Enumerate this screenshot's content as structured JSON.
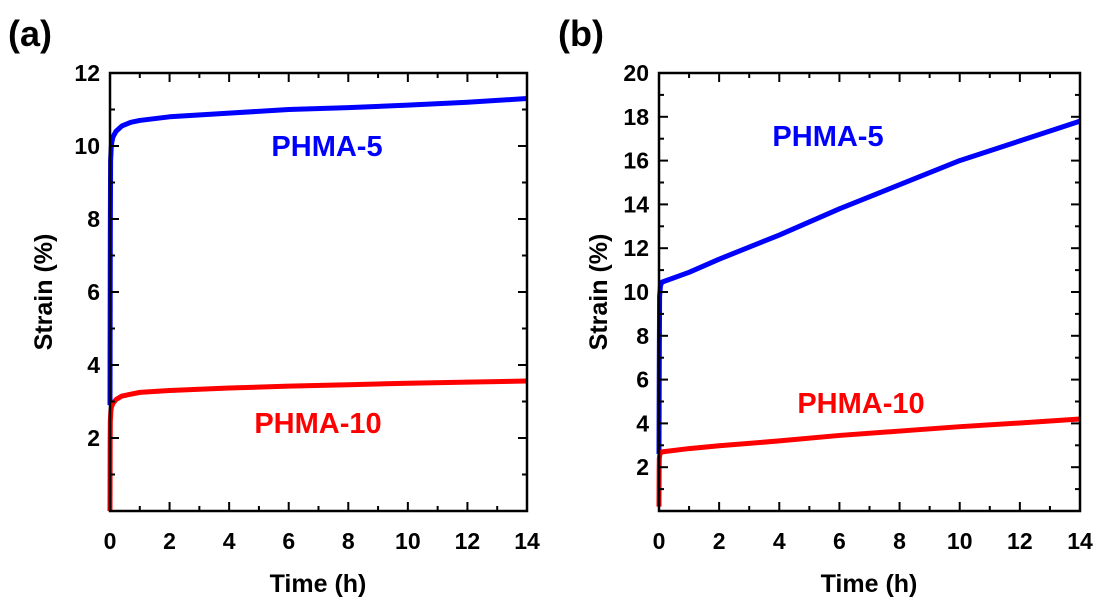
{
  "chart_data": [
    {
      "panel": "(a)",
      "type": "line",
      "xlabel": "Time (h)",
      "ylabel": "Strain (%)",
      "xlim": [
        0,
        14
      ],
      "ylim": [
        0,
        12
      ],
      "xticks": [
        0,
        2,
        4,
        6,
        8,
        10,
        12,
        14
      ],
      "yticks": [
        2,
        4,
        6,
        8,
        10,
        12
      ],
      "grid": false,
      "series": [
        {
          "name": "PHMA-5",
          "color": "#0000ff",
          "x": [
            0,
            0.01,
            0.02,
            0.04,
            0.06,
            0.1,
            0.2,
            0.4,
            0.7,
            1,
            2,
            4,
            6,
            8,
            10,
            12,
            14
          ],
          "y": [
            2.9,
            7.5,
            9.6,
            9.95,
            10.1,
            10.25,
            10.4,
            10.55,
            10.65,
            10.7,
            10.8,
            10.9,
            11.0,
            11.05,
            11.12,
            11.2,
            11.3
          ]
        },
        {
          "name": "PHMA-10",
          "color": "#ff0000",
          "x": [
            0,
            0.005,
            0.01,
            0.03,
            0.05,
            0.1,
            0.2,
            0.4,
            0.7,
            1,
            2,
            4,
            6,
            8,
            10,
            12,
            14
          ],
          "y": [
            0,
            1.8,
            2.45,
            2.75,
            2.85,
            2.95,
            3.05,
            3.15,
            3.2,
            3.25,
            3.3,
            3.37,
            3.42,
            3.46,
            3.5,
            3.53,
            3.56
          ]
        }
      ]
    },
    {
      "panel": "(b)",
      "type": "line",
      "xlabel": "Time (h)",
      "ylabel": "Strain (%)",
      "xlim": [
        0,
        14
      ],
      "ylim": [
        0,
        20
      ],
      "xticks": [
        0,
        2,
        4,
        6,
        8,
        10,
        12,
        14
      ],
      "yticks": [
        2,
        4,
        6,
        8,
        10,
        12,
        14,
        16,
        18,
        20
      ],
      "grid": false,
      "series": [
        {
          "name": "PHMA-5",
          "color": "#0000ff",
          "x": [
            0,
            0.01,
            0.02,
            0.05,
            0.1,
            1,
            2,
            4,
            6,
            8,
            10,
            12,
            14
          ],
          "y": [
            2.6,
            7.0,
            9.8,
            10.3,
            10.45,
            10.9,
            11.5,
            12.6,
            13.8,
            14.9,
            16.0,
            16.9,
            17.8
          ]
        },
        {
          "name": "PHMA-10",
          "color": "#ff0000",
          "x": [
            0,
            0.005,
            0.01,
            0.03,
            0.1,
            1,
            2,
            4,
            6,
            8,
            10,
            12,
            14
          ],
          "y": [
            0.2,
            1.8,
            2.4,
            2.6,
            2.7,
            2.85,
            2.98,
            3.2,
            3.45,
            3.65,
            3.85,
            4.02,
            4.2
          ]
        }
      ]
    }
  ]
}
